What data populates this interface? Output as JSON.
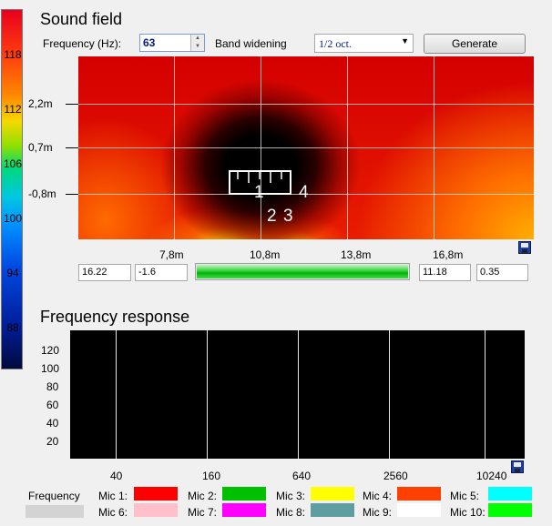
{
  "colorbar": {
    "labels": [
      "118",
      "112",
      "106",
      "100",
      "94",
      "88"
    ]
  },
  "sound_field": {
    "title": "Sound field",
    "frequency_label": "Frequency (Hz):",
    "frequency_value": "63",
    "band_label": "Band widening",
    "band_value": "1/2 oct.",
    "generate_label": "Generate",
    "y_ticks": [
      "2,2m",
      "0,7m",
      "-0,8m"
    ],
    "x_ticks": [
      "7,8m",
      "10,8m",
      "13,8m",
      "16,8m"
    ],
    "mic_labels": [
      "1",
      "4",
      "2",
      "3"
    ],
    "inputs": {
      "x_min": "16.22",
      "y_min": "-1.6",
      "x_max": "11.18",
      "y_max": "0.35"
    },
    "progress": 1.0
  },
  "frequency_response": {
    "title": "Frequency response",
    "y_ticks": [
      "120",
      "100",
      "80",
      "60",
      "40",
      "20"
    ],
    "x_ticks": [
      "40",
      "160",
      "640",
      "2560",
      "10240"
    ]
  },
  "legend": {
    "frequency_label": "Frequency",
    "frequency_color": "#d3d3d3",
    "mics": [
      {
        "label": "Mic 1:",
        "color": "#ff0000"
      },
      {
        "label": "Mic 2:",
        "color": "#00c000"
      },
      {
        "label": "Mic 3:",
        "color": "#ffff00"
      },
      {
        "label": "Mic 4:",
        "color": "#ff4000"
      },
      {
        "label": "Mic 5:",
        "color": "#00ffff"
      },
      {
        "label": "Mic 6:",
        "color": "#ffc0cb"
      },
      {
        "label": "Mic 7:",
        "color": "#ff00ff"
      },
      {
        "label": "Mic 8:",
        "color": "#5f9ea0"
      },
      {
        "label": "Mic 9:",
        "color": "#ffffff"
      },
      {
        "label": "Mic 10:",
        "color": "#00ff00"
      }
    ]
  }
}
